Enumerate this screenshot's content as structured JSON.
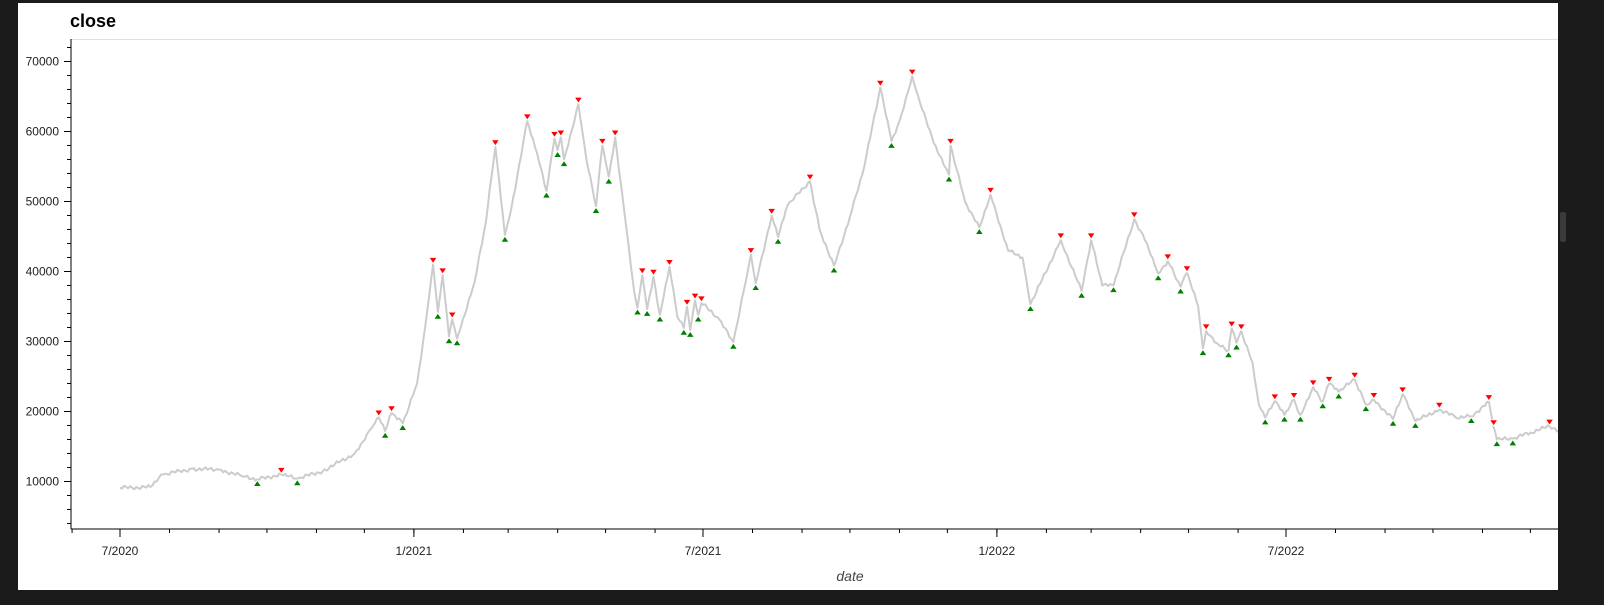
{
  "chart_data": {
    "type": "line",
    "title": "close",
    "xlabel": "date",
    "ylabel": "",
    "x_start": "2020-07-01",
    "x_end": "2022-12-31",
    "ylim": [
      3000,
      73500
    ],
    "y_ticks": [
      10000,
      20000,
      30000,
      40000,
      50000,
      60000,
      70000
    ],
    "y_tick_labels": [
      "10000",
      "20000",
      "30000",
      "40000",
      "50000",
      "60000",
      "70000"
    ],
    "x_ticks": [
      "2020-07-01",
      "2021-01-01",
      "2021-07-01",
      "2022-01-01",
      "2022-07-01"
    ],
    "x_tick_labels": [
      "7/2020",
      "1/2021",
      "7/2021",
      "1/2022",
      "7/2022"
    ],
    "grid": false,
    "line_color": "#cccccc",
    "peak_color": "#ff0000",
    "trough_color": "#008000",
    "series": [
      {
        "values": [
          [
            "2020-07-01",
            9100
          ],
          [
            "2020-07-20",
            9200
          ],
          [
            "2020-07-28",
            11000
          ],
          [
            "2020-08-15",
            11800
          ],
          [
            "2020-09-01",
            11700
          ],
          [
            "2020-09-15",
            10800
          ],
          [
            "2020-09-25",
            10300
          ],
          [
            "2020-10-10",
            11000
          ],
          [
            "2020-10-20",
            10400
          ],
          [
            "2020-11-05",
            11500
          ],
          [
            "2020-11-25",
            14000
          ],
          [
            "2020-12-05",
            17500
          ],
          [
            "2020-12-10",
            19200
          ],
          [
            "2020-12-14",
            17200
          ],
          [
            "2020-12-18",
            19800
          ],
          [
            "2020-12-25",
            18300
          ],
          [
            "2021-01-03",
            24000
          ],
          [
            "2021-01-08",
            32000
          ],
          [
            "2021-01-13",
            41000
          ],
          [
            "2021-01-16",
            34200
          ],
          [
            "2021-01-19",
            39500
          ],
          [
            "2021-01-23",
            30700
          ],
          [
            "2021-01-25",
            33200
          ],
          [
            "2021-01-28",
            30400
          ],
          [
            "2021-02-08",
            38500
          ],
          [
            "2021-02-15",
            47000
          ],
          [
            "2021-02-21",
            57800
          ],
          [
            "2021-02-27",
            45200
          ],
          [
            "2021-03-03",
            49000
          ],
          [
            "2021-03-13",
            61500
          ],
          [
            "2021-03-19",
            57000
          ],
          [
            "2021-03-25",
            51500
          ],
          [
            "2021-03-30",
            59000
          ],
          [
            "2021-04-01",
            57300
          ],
          [
            "2021-04-03",
            59200
          ],
          [
            "2021-04-05",
            56000
          ],
          [
            "2021-04-14",
            63900
          ],
          [
            "2021-04-19",
            56000
          ],
          [
            "2021-04-25",
            49300
          ],
          [
            "2021-04-29",
            58000
          ],
          [
            "2021-05-03",
            53500
          ],
          [
            "2021-05-07",
            59200
          ],
          [
            "2021-05-12",
            50000
          ],
          [
            "2021-05-19",
            37000
          ],
          [
            "2021-05-21",
            34800
          ],
          [
            "2021-05-24",
            39500
          ],
          [
            "2021-05-27",
            34600
          ],
          [
            "2021-05-31",
            39300
          ],
          [
            "2021-06-04",
            33800
          ],
          [
            "2021-06-10",
            40700
          ],
          [
            "2021-06-15",
            33500
          ],
          [
            "2021-06-19",
            31900
          ],
          [
            "2021-06-21",
            35000
          ],
          [
            "2021-06-23",
            31600
          ],
          [
            "2021-06-26",
            35900
          ],
          [
            "2021-06-28",
            33800
          ],
          [
            "2021-06-30",
            35500
          ],
          [
            "2021-07-10",
            33500
          ],
          [
            "2021-07-20",
            29900
          ],
          [
            "2021-07-29",
            40000
          ],
          [
            "2021-07-31",
            42400
          ],
          [
            "2021-08-03",
            38300
          ],
          [
            "2021-08-13",
            48000
          ],
          [
            "2021-08-17",
            44900
          ],
          [
            "2021-08-23",
            49500
          ],
          [
            "2021-09-06",
            52900
          ],
          [
            "2021-09-12",
            46000
          ],
          [
            "2021-09-21",
            40800
          ],
          [
            "2021-10-01",
            47800
          ],
          [
            "2021-10-10",
            55000
          ],
          [
            "2021-10-20",
            66300
          ],
          [
            "2021-10-27",
            58600
          ],
          [
            "2021-11-01",
            61500
          ],
          [
            "2021-11-09",
            67900
          ],
          [
            "2021-11-14",
            64000
          ],
          [
            "2021-11-25",
            57000
          ],
          [
            "2021-12-02",
            53800
          ],
          [
            "2021-12-03",
            58000
          ],
          [
            "2021-12-12",
            50000
          ],
          [
            "2021-12-21",
            46300
          ],
          [
            "2021-12-28",
            51000
          ],
          [
            "2022-01-08",
            43000
          ],
          [
            "2022-01-17",
            42000
          ],
          [
            "2022-01-22",
            35300
          ],
          [
            "2022-02-08",
            43500
          ],
          [
            "2022-02-10",
            44500
          ],
          [
            "2022-02-23",
            37200
          ],
          [
            "2022-03-01",
            44500
          ],
          [
            "2022-03-08",
            38000
          ],
          [
            "2022-03-15",
            38000
          ],
          [
            "2022-03-28",
            47500
          ],
          [
            "2022-04-05",
            44000
          ],
          [
            "2022-04-12",
            39700
          ],
          [
            "2022-04-18",
            41500
          ],
          [
            "2022-04-26",
            37800
          ],
          [
            "2022-04-30",
            39800
          ],
          [
            "2022-05-07",
            35000
          ],
          [
            "2022-05-10",
            29000
          ],
          [
            "2022-05-12",
            31500
          ],
          [
            "2022-05-20",
            29500
          ],
          [
            "2022-05-26",
            28700
          ],
          [
            "2022-05-28",
            31900
          ],
          [
            "2022-05-31",
            29800
          ],
          [
            "2022-06-03",
            31500
          ],
          [
            "2022-06-10",
            27000
          ],
          [
            "2022-06-14",
            21000
          ],
          [
            "2022-06-18",
            19100
          ],
          [
            "2022-06-24",
            21500
          ],
          [
            "2022-06-30",
            19500
          ],
          [
            "2022-07-06",
            21700
          ],
          [
            "2022-07-10",
            19500
          ],
          [
            "2022-07-18",
            23500
          ],
          [
            "2022-07-24",
            21400
          ],
          [
            "2022-07-28",
            24000
          ],
          [
            "2022-08-03",
            22800
          ],
          [
            "2022-08-13",
            24600
          ],
          [
            "2022-08-20",
            21000
          ],
          [
            "2022-08-25",
            21700
          ],
          [
            "2022-09-06",
            18900
          ],
          [
            "2022-09-12",
            22500
          ],
          [
            "2022-09-20",
            18600
          ],
          [
            "2022-10-05",
            20300
          ],
          [
            "2022-10-15",
            19200
          ],
          [
            "2022-10-25",
            19300
          ],
          [
            "2022-11-05",
            21400
          ],
          [
            "2022-11-08",
            17800
          ],
          [
            "2022-11-10",
            16000
          ],
          [
            "2022-11-20",
            16100
          ],
          [
            "2022-12-01",
            17000
          ],
          [
            "2022-12-13",
            17900
          ],
          [
            "2022-12-20",
            17200
          ],
          [
            "2022-12-31",
            17300
          ]
        ]
      }
    ],
    "peaks": [
      [
        "2020-10-10",
        11000
      ],
      [
        "2020-12-10",
        19200
      ],
      [
        "2020-12-18",
        19800
      ],
      [
        "2021-01-13",
        41000
      ],
      [
        "2021-01-19",
        39500
      ],
      [
        "2021-01-25",
        33200
      ],
      [
        "2021-02-21",
        57800
      ],
      [
        "2021-03-13",
        61500
      ],
      [
        "2021-03-30",
        59000
      ],
      [
        "2021-04-03",
        59200
      ],
      [
        "2021-04-14",
        63900
      ],
      [
        "2021-04-29",
        58000
      ],
      [
        "2021-05-07",
        59200
      ],
      [
        "2021-05-24",
        39500
      ],
      [
        "2021-05-31",
        39300
      ],
      [
        "2021-06-10",
        40700
      ],
      [
        "2021-06-21",
        35000
      ],
      [
        "2021-06-26",
        35900
      ],
      [
        "2021-06-30",
        35500
      ],
      [
        "2021-07-31",
        42400
      ],
      [
        "2021-08-13",
        48000
      ],
      [
        "2021-09-06",
        52900
      ],
      [
        "2021-10-20",
        66300
      ],
      [
        "2021-11-09",
        67900
      ],
      [
        "2021-12-03",
        58000
      ],
      [
        "2021-12-28",
        51000
      ],
      [
        "2022-02-10",
        44500
      ],
      [
        "2022-03-01",
        44500
      ],
      [
        "2022-03-28",
        47500
      ],
      [
        "2022-04-18",
        41500
      ],
      [
        "2022-04-30",
        39800
      ],
      [
        "2022-05-12",
        31500
      ],
      [
        "2022-05-28",
        31900
      ],
      [
        "2022-06-03",
        31500
      ],
      [
        "2022-06-24",
        21500
      ],
      [
        "2022-07-06",
        21700
      ],
      [
        "2022-07-18",
        23500
      ],
      [
        "2022-07-28",
        24000
      ],
      [
        "2022-08-13",
        24600
      ],
      [
        "2022-08-25",
        21700
      ],
      [
        "2022-09-12",
        22500
      ],
      [
        "2022-10-05",
        20300
      ],
      [
        "2022-11-05",
        21400
      ],
      [
        "2022-11-08",
        17800
      ],
      [
        "2022-12-13",
        17900
      ]
    ],
    "troughs": [
      [
        "2020-09-25",
        10300
      ],
      [
        "2020-10-20",
        10400
      ],
      [
        "2020-12-14",
        17200
      ],
      [
        "2020-12-25",
        18300
      ],
      [
        "2021-01-16",
        34200
      ],
      [
        "2021-01-23",
        30700
      ],
      [
        "2021-01-28",
        30400
      ],
      [
        "2021-02-27",
        45200
      ],
      [
        "2021-03-25",
        51500
      ],
      [
        "2021-04-01",
        57300
      ],
      [
        "2021-04-05",
        56000
      ],
      [
        "2021-04-25",
        49300
      ],
      [
        "2021-05-03",
        53500
      ],
      [
        "2021-05-21",
        34800
      ],
      [
        "2021-05-27",
        34600
      ],
      [
        "2021-06-04",
        33800
      ],
      [
        "2021-06-19",
        31900
      ],
      [
        "2021-06-23",
        31600
      ],
      [
        "2021-06-28",
        33800
      ],
      [
        "2021-07-20",
        29900
      ],
      [
        "2021-08-03",
        38300
      ],
      [
        "2021-08-17",
        44900
      ],
      [
        "2021-09-21",
        40800
      ],
      [
        "2021-10-27",
        58600
      ],
      [
        "2021-12-02",
        53800
      ],
      [
        "2021-12-21",
        46300
      ],
      [
        "2022-01-22",
        35300
      ],
      [
        "2022-02-23",
        37200
      ],
      [
        "2022-03-15",
        38000
      ],
      [
        "2022-04-12",
        39700
      ],
      [
        "2022-04-26",
        37800
      ],
      [
        "2022-05-10",
        29000
      ],
      [
        "2022-05-26",
        28700
      ],
      [
        "2022-05-31",
        29800
      ],
      [
        "2022-06-18",
        19100
      ],
      [
        "2022-06-30",
        19500
      ],
      [
        "2022-07-10",
        19500
      ],
      [
        "2022-07-24",
        21400
      ],
      [
        "2022-08-03",
        22800
      ],
      [
        "2022-08-20",
        21000
      ],
      [
        "2022-09-06",
        18900
      ],
      [
        "2022-09-20",
        18600
      ],
      [
        "2022-10-25",
        19300
      ],
      [
        "2022-11-10",
        16000
      ],
      [
        "2022-11-20",
        16100
      ]
    ]
  }
}
